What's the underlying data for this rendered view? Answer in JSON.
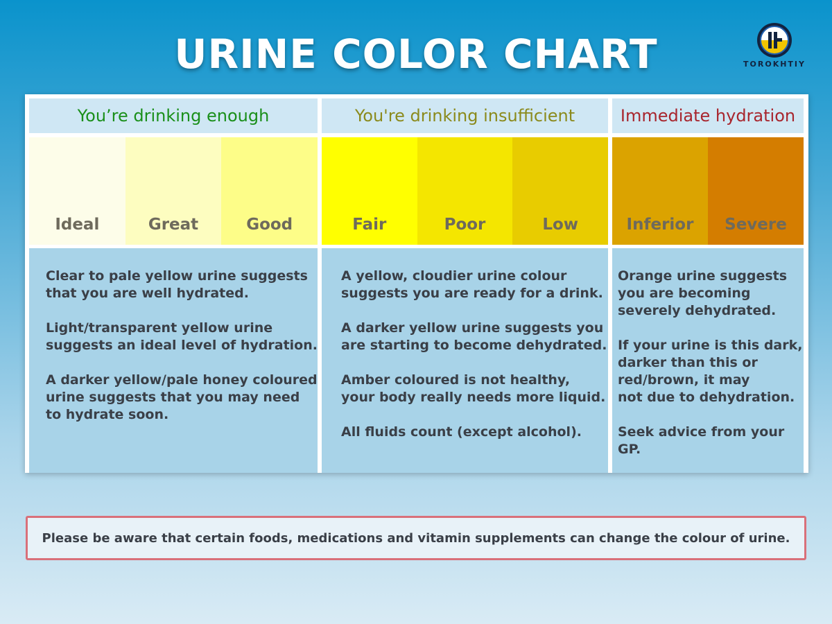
{
  "title": "URINE COLOR CHART",
  "logo": {
    "name": "TOROKHTIY",
    "icon": "torokhtiy-logo-icon"
  },
  "columns": [
    {
      "heading": "You’re drinking enough",
      "heading_color": "#1a8f1a",
      "swatches": [
        {
          "label": "Ideal",
          "color": "#fdfde9"
        },
        {
          "label": "Great",
          "color": "#fdfdc0"
        },
        {
          "label": "Good",
          "color": "#fdfd88"
        }
      ],
      "paragraphs": [
        "Clear to pale yellow urine suggests\nthat you are well hydrated.",
        "Light/transparent yellow urine\nsuggests an ideal level of hydration.",
        "A darker yellow/pale honey coloured\nurine suggests that you may need\nto hydrate soon."
      ]
    },
    {
      "heading": "You're drinking insufficient",
      "heading_color": "#8b8a1c",
      "swatches": [
        {
          "label": "Fair",
          "color": "#ffff00"
        },
        {
          "label": "Poor",
          "color": "#f4e600"
        },
        {
          "label": "Low",
          "color": "#e8cc00"
        }
      ],
      "paragraphs": [
        "A yellow, cloudier urine colour\nsuggests you are ready for a drink.",
        "A darker yellow urine suggests you\nare starting to become dehydrated.",
        "Amber coloured is not healthy,\nyour body really needs more liquid.",
        "All fluids count (except alcohol)."
      ]
    },
    {
      "heading": "Immediate hydration",
      "heading_color": "#a8252d",
      "swatches": [
        {
          "label": "Inferior",
          "color": "#dba300"
        },
        {
          "label": "Severe",
          "color": "#d47d00"
        }
      ],
      "paragraphs": [
        "Orange urine suggests\nyou are becoming\nseverely dehydrated.",
        "If your urine is this dark,\ndarker than this or\nred/brown, it may\nnot due to dehydration.",
        "Seek advice from your GP."
      ]
    }
  ],
  "note": "Please be aware that certain foods, medications and vitamin supplements can change the colour of urine."
}
